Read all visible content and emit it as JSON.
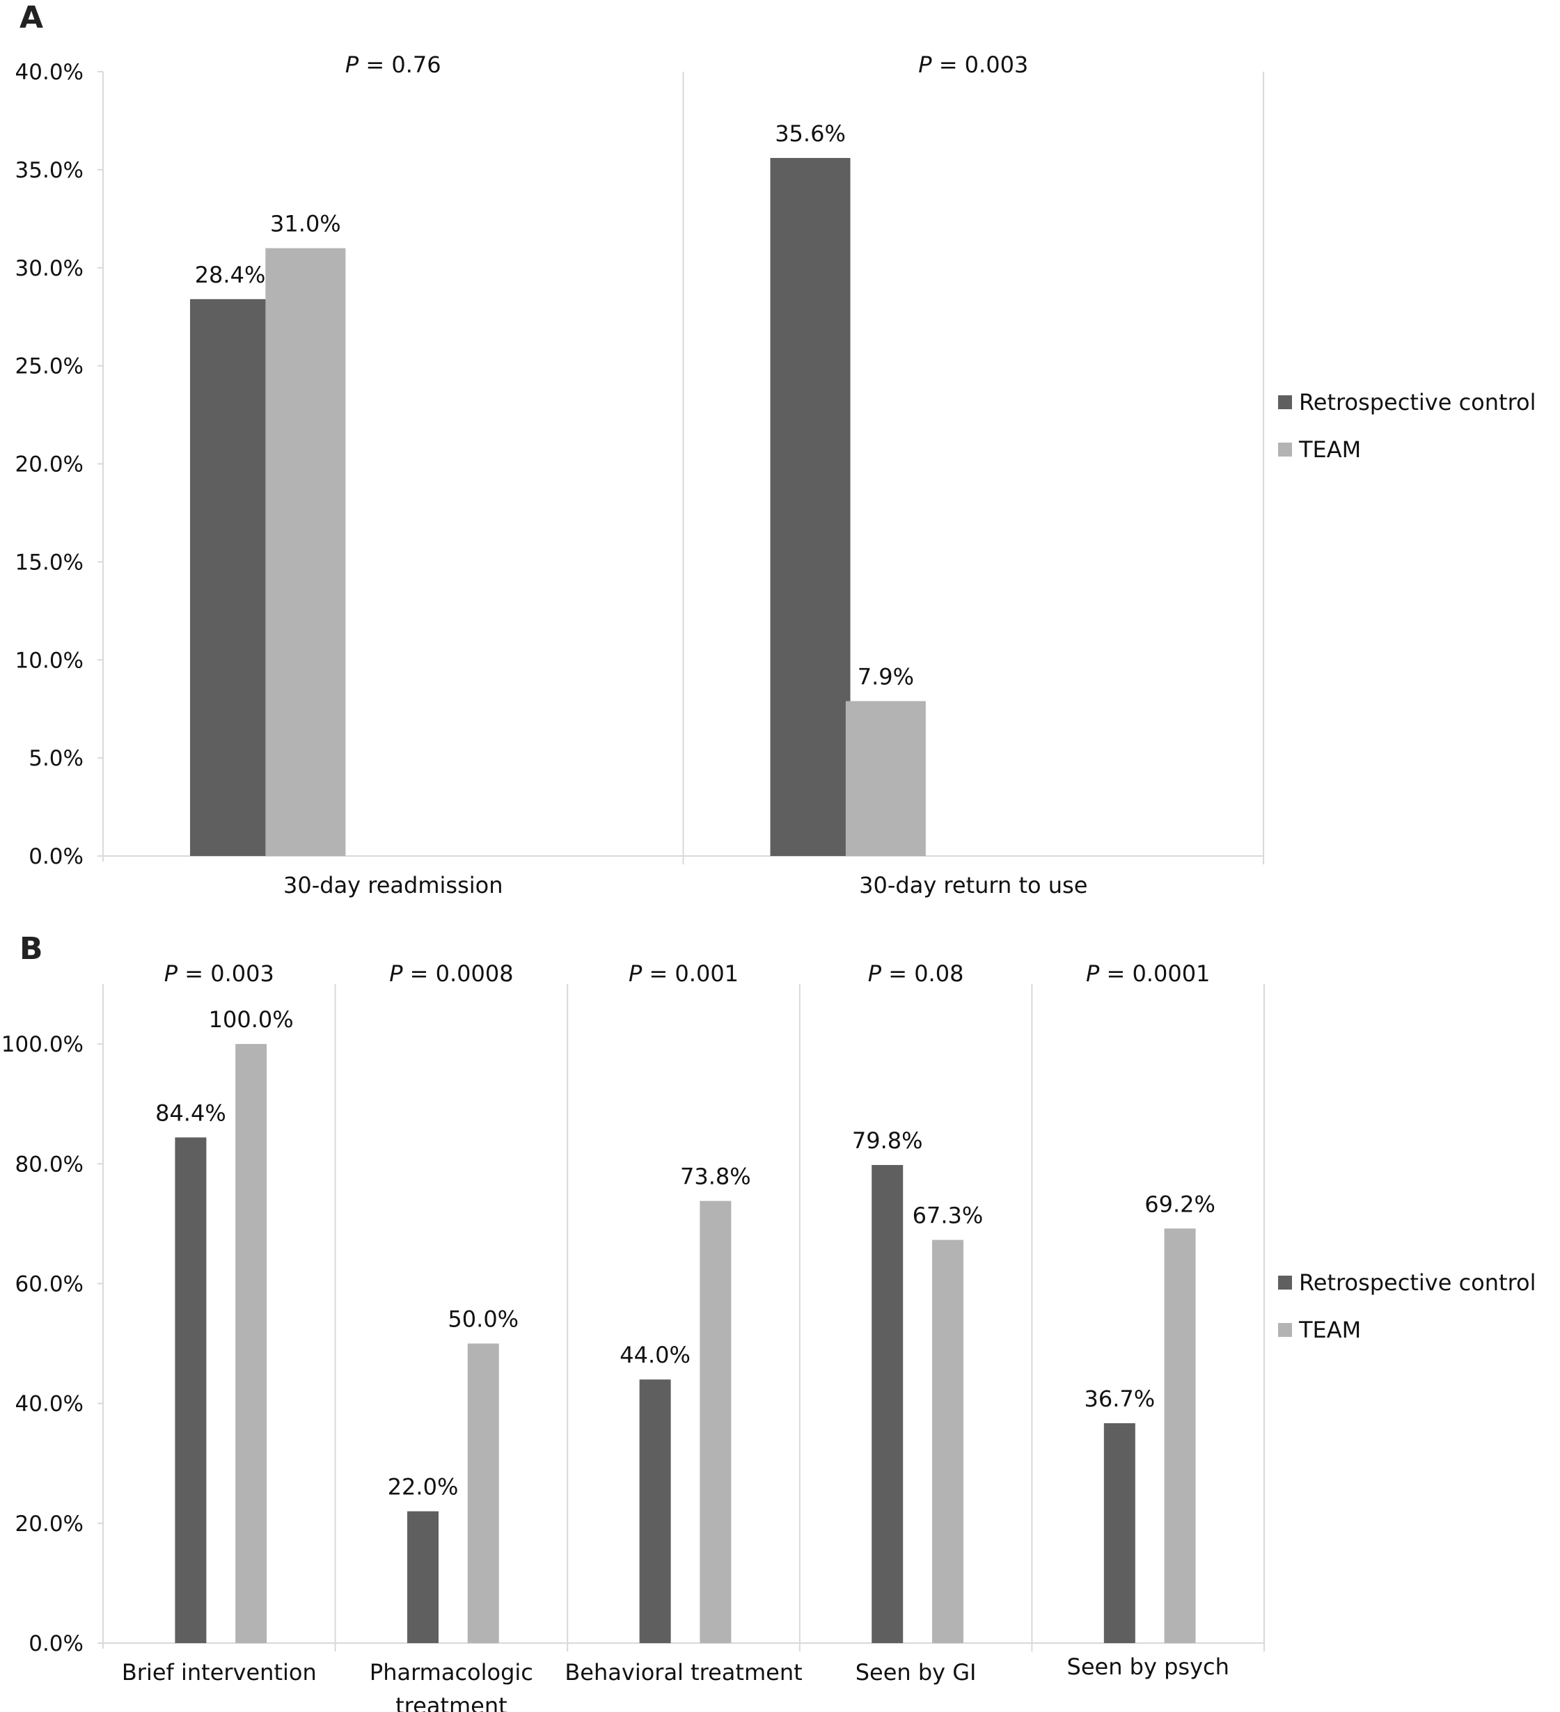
{
  "colors": {
    "control": "#5f5f5f",
    "team": "#b3b3b3",
    "grid": "#d9d9d9"
  },
  "legend": [
    "Retrospective control",
    "TEAM"
  ],
  "chart_data": [
    {
      "panel": "A",
      "type": "bar",
      "categories": [
        "30-day readmission",
        "30-day return to use"
      ],
      "p_values": [
        "P = 0.76",
        "P = 0.003"
      ],
      "series": [
        {
          "name": "Retrospective control",
          "values": [
            28.4,
            35.6
          ],
          "labels": [
            "28.4%",
            "35.6%"
          ]
        },
        {
          "name": "TEAM",
          "values": [
            31.0,
            7.9
          ],
          "labels": [
            "31.0%",
            "7.9%"
          ]
        }
      ],
      "ylim": [
        0,
        40
      ],
      "yticks": [
        "0.0%",
        "5.0%",
        "10.0%",
        "15.0%",
        "20.0%",
        "25.0%",
        "30.0%",
        "35.0%",
        "40.0%"
      ],
      "legend_position": "right"
    },
    {
      "panel": "B",
      "type": "bar",
      "categories": [
        "Brief intervention",
        "Pharmacologic treatment",
        "Behavioral treatment",
        "Seen by GI",
        "Seen by psych"
      ],
      "p_values": [
        "P = 0.003",
        "P = 0.0008",
        "P = 0.001",
        "P = 0.08",
        "P = 0.0001"
      ],
      "series": [
        {
          "name": "Retrospective control",
          "values": [
            84.4,
            22.0,
            44.0,
            79.8,
            36.7
          ],
          "labels": [
            "84.4%",
            "22.0%",
            "44.0%",
            "79.8%",
            "36.7%"
          ]
        },
        {
          "name": "TEAM",
          "values": [
            100.0,
            50.0,
            73.8,
            67.3,
            69.2
          ],
          "labels": [
            "100.0%",
            "50.0%",
            "73.8%",
            "67.3%",
            "69.2%"
          ]
        }
      ],
      "ylim": [
        0,
        110
      ],
      "yticks": [
        "0.0%",
        "20.0%",
        "40.0%",
        "60.0%",
        "80.0%",
        "100.0%"
      ],
      "legend_position": "right"
    }
  ]
}
